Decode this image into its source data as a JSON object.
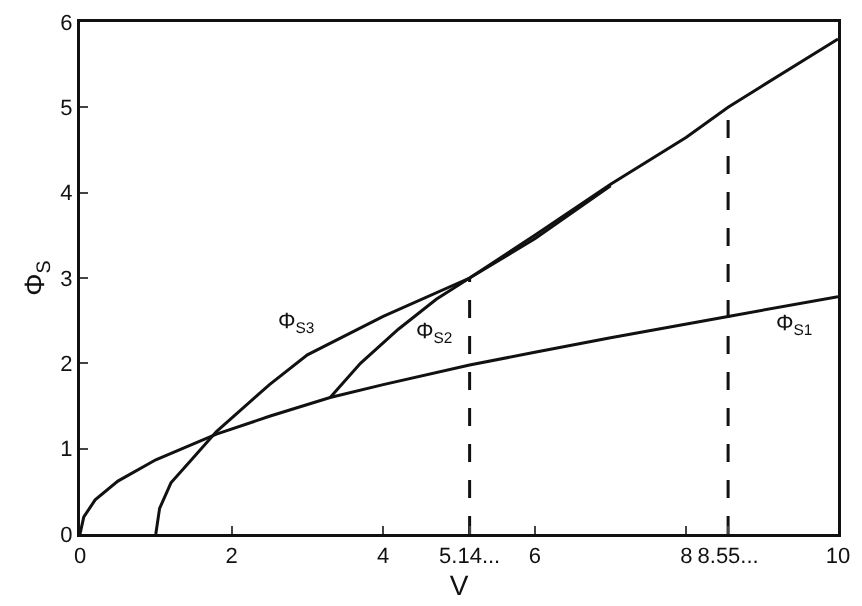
{
  "chart_data": {
    "type": "line",
    "xlabel": "V",
    "ylabel": "Φ$_{S}$",
    "xlim": [
      0,
      10
    ],
    "ylim": [
      0,
      6
    ],
    "xticks": [
      0,
      2,
      4,
      {
        "value": 5.14,
        "label": "5.14..."
      },
      6,
      8,
      {
        "value": 8.55,
        "label": "8.55..."
      },
      10
    ],
    "yticks": [
      0,
      1,
      2,
      3,
      4,
      5,
      6
    ],
    "grid": false,
    "marker": "none",
    "series": [
      {
        "name": "Φ$_{S1}$",
        "color": "#111111",
        "x": [
          0,
          0.05,
          0.2,
          0.5,
          1,
          1.8,
          2.5,
          3.3,
          4,
          5.14,
          6,
          7,
          8.55,
          10
        ],
        "values": [
          0,
          0.2,
          0.4,
          0.62,
          0.87,
          1.17,
          1.38,
          1.6,
          1.75,
          1.98,
          2.13,
          2.3,
          2.55,
          2.78
        ]
      },
      {
        "name": "Φ$_{S2}$",
        "color": "#111111",
        "x": [
          3.3,
          3.7,
          4.2,
          4.7,
          5.14,
          6,
          7
        ],
        "values": [
          1.6,
          2.0,
          2.4,
          2.75,
          3.0,
          3.46,
          4.08
        ]
      },
      {
        "name": "Φ$_{S3}$",
        "color": "#111111",
        "x": [
          1,
          1.05,
          1.2,
          1.5,
          1.8,
          2.5,
          3,
          4,
          5.14,
          6,
          7,
          8,
          8.55,
          9,
          10
        ],
        "values": [
          0,
          0.3,
          0.6,
          0.9,
          1.2,
          1.75,
          2.1,
          2.55,
          3.0,
          3.5,
          4.1,
          4.65,
          5.0,
          5.25,
          5.8
        ]
      },
      {
        "color": "#111111",
        "line_style": "dashed",
        "x": [
          5.14,
          5.14
        ],
        "values": [
          0,
          3.0
        ]
      },
      {
        "color": "#111111",
        "line_style": "dashed",
        "x": [
          8.55,
          8.55,
          8.55
        ],
        "values": [
          0,
          2.5,
          5.0
        ]
      }
    ]
  }
}
